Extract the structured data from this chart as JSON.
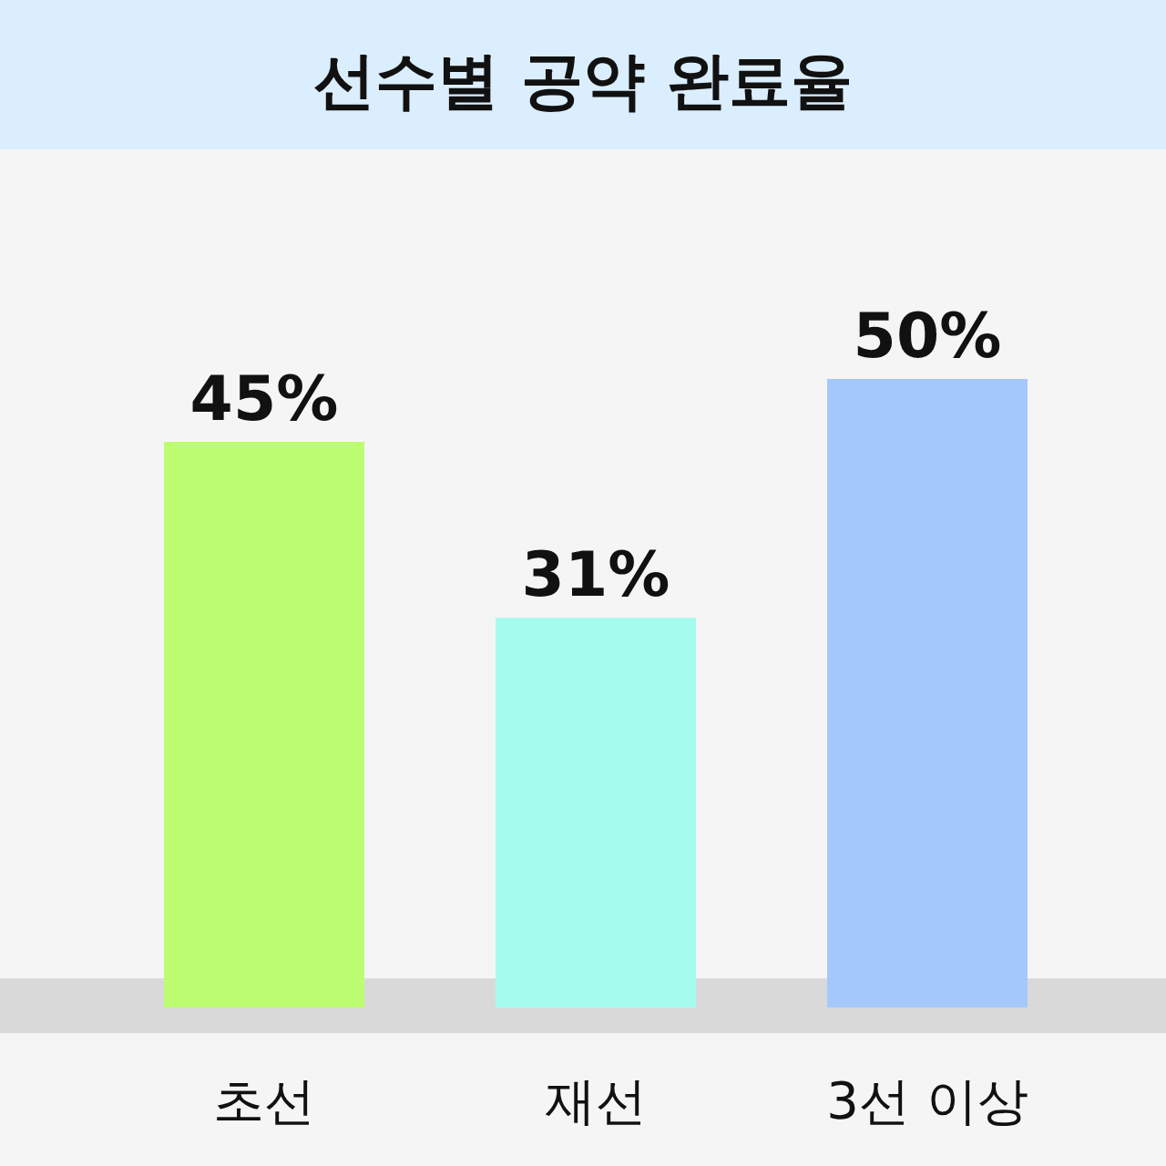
{
  "chart_data": {
    "type": "bar",
    "title": "선수별 공약 완료율",
    "categories": [
      "초선",
      "재선",
      "3선 이상"
    ],
    "values": [
      45,
      31,
      50
    ],
    "value_labels": [
      "45%",
      "31%",
      "50%"
    ],
    "colors": [
      "#bdfd72",
      "#a6fbef",
      "#a4c8fc"
    ]
  }
}
